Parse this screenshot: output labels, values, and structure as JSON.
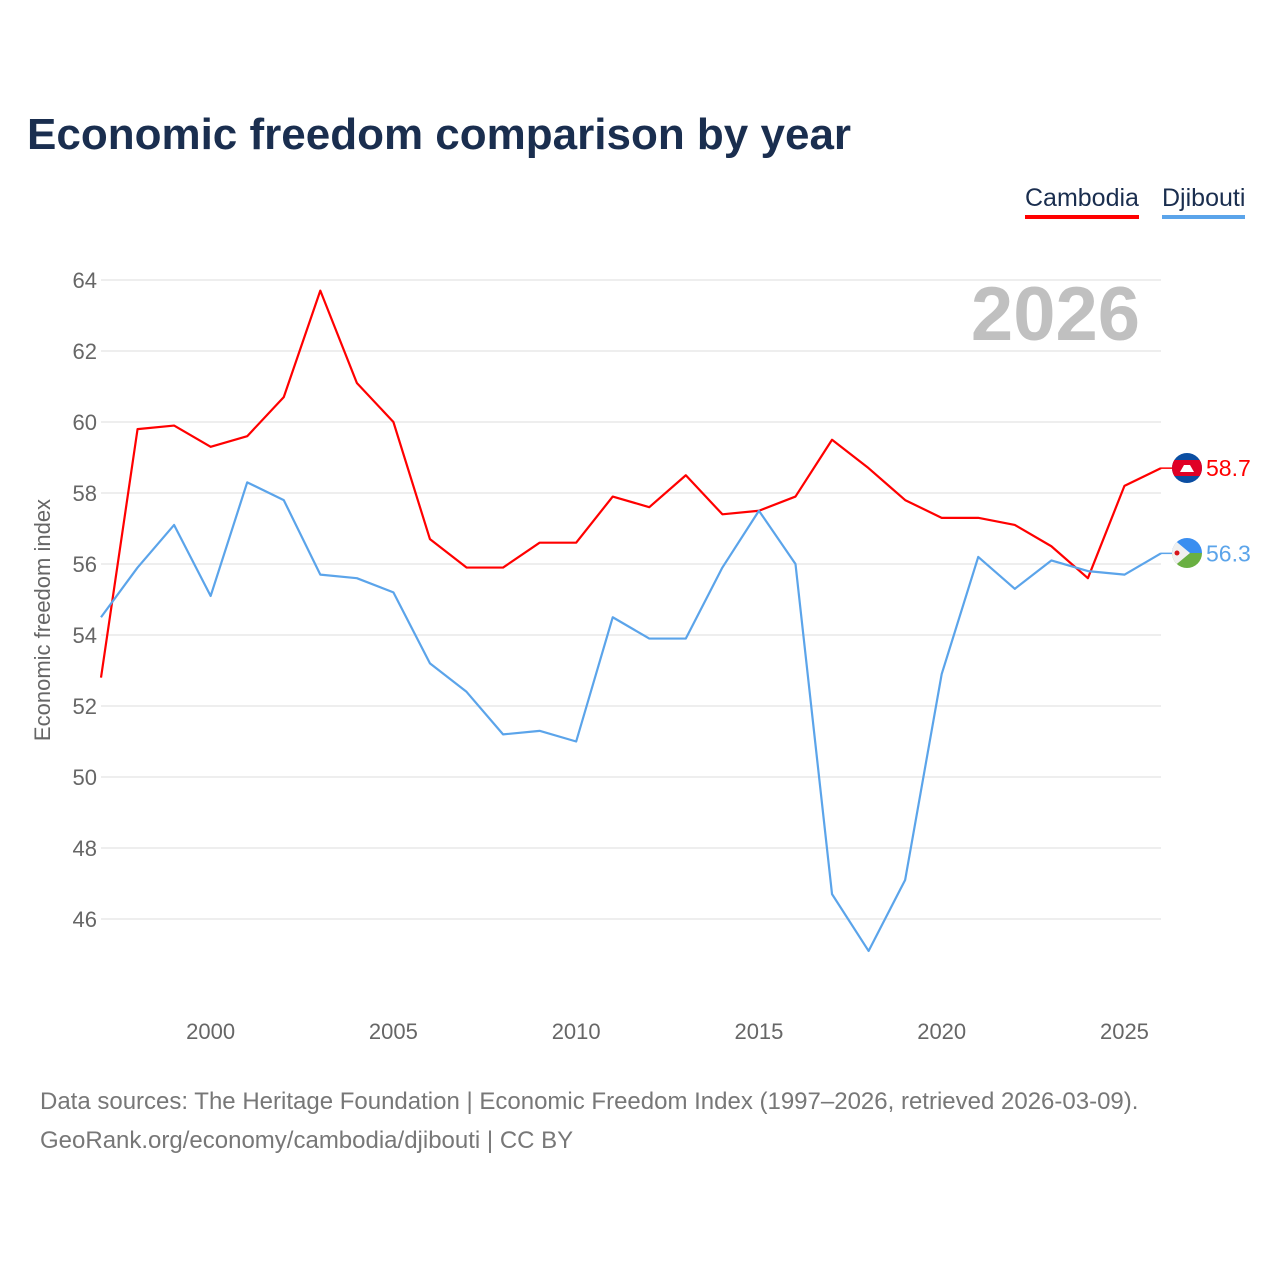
{
  "title": "Economic freedom comparison by year",
  "legend": [
    "Cambodia",
    "Djibouti"
  ],
  "watermark_year": "2026",
  "sources": {
    "line1": "Data sources: The Heritage Foundation | Economic Freedom Index (1997–2026, retrieved 2026-03-09).",
    "line2": "GeoRank.org/economy/cambodia/djibouti | CC BY"
  },
  "chart_data": {
    "type": "line",
    "title": "Economic freedom comparison by year",
    "xlabel": "",
    "ylabel": "Economic freedom index",
    "x": [
      1997,
      1998,
      1999,
      2000,
      2001,
      2002,
      2003,
      2004,
      2005,
      2006,
      2007,
      2008,
      2009,
      2010,
      2011,
      2012,
      2013,
      2014,
      2015,
      2016,
      2017,
      2018,
      2019,
      2020,
      2021,
      2022,
      2023,
      2024,
      2025,
      2026
    ],
    "xticks": [
      2000,
      2005,
      2010,
      2015,
      2020,
      2025
    ],
    "yticks": [
      46,
      48,
      50,
      52,
      54,
      56,
      58,
      60,
      62,
      64
    ],
    "ylim": [
      44.2,
      64.5
    ],
    "xlim": [
      1997,
      2026
    ],
    "grid": true,
    "legend_position": "top-right",
    "series": [
      {
        "name": "Cambodia",
        "color": "#ff0000",
        "end_label": "58.7",
        "values": [
          52.8,
          59.8,
          59.9,
          59.3,
          59.6,
          60.7,
          63.7,
          61.1,
          60.0,
          56.7,
          55.9,
          55.9,
          56.6,
          56.6,
          57.9,
          57.6,
          58.5,
          57.4,
          57.5,
          57.9,
          59.5,
          58.7,
          57.8,
          57.3,
          57.3,
          57.1,
          56.5,
          55.6,
          58.2,
          58.7
        ]
      },
      {
        "name": "Djibouti",
        "color": "#5ba4ea",
        "end_label": "56.3",
        "values": [
          54.5,
          55.9,
          57.1,
          55.1,
          58.3,
          57.8,
          55.7,
          55.6,
          55.2,
          53.2,
          52.4,
          51.2,
          51.3,
          51.0,
          54.5,
          53.9,
          53.9,
          55.9,
          57.5,
          56.0,
          46.7,
          45.1,
          47.1,
          52.9,
          56.2,
          55.3,
          56.1,
          55.8,
          55.7,
          56.3
        ]
      }
    ]
  }
}
